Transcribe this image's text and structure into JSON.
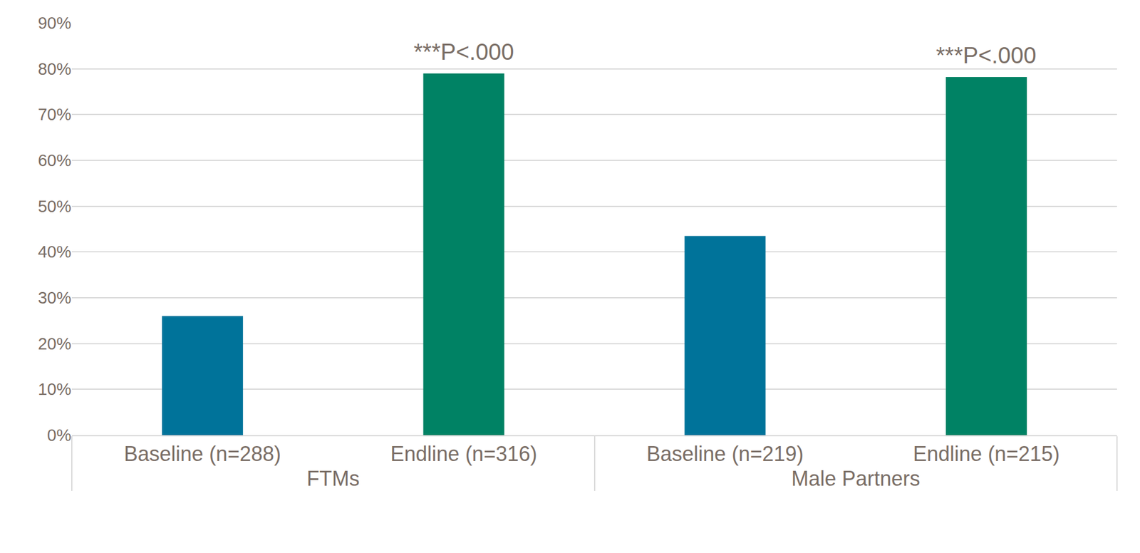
{
  "chart_data": {
    "type": "bar",
    "categories": [
      "Baseline (n=288)",
      "Endline (n=316)",
      "Baseline (n=219)",
      "Endline (n=215)"
    ],
    "groups": [
      "FTMs",
      "FTMs",
      "Male Partners",
      "Male Partners"
    ],
    "values": [
      26,
      79,
      43.5,
      78.2
    ],
    "colors": [
      "#00739a",
      "#008264",
      "#00739a",
      "#008264"
    ],
    "ylim": [
      0,
      90
    ],
    "yticks": [
      {
        "value": 0,
        "label": "0%"
      },
      {
        "value": 10,
        "label": "10%"
      },
      {
        "value": 20,
        "label": "20%"
      },
      {
        "value": 30,
        "label": "30%"
      },
      {
        "value": 40,
        "label": "40%"
      },
      {
        "value": 50,
        "label": "50%"
      },
      {
        "value": 60,
        "label": "60%"
      },
      {
        "value": 70,
        "label": "70%"
      },
      {
        "value": 80,
        "label": "80%"
      },
      {
        "value": 90,
        "label": "90%"
      }
    ],
    "grid": true,
    "annotations": [
      {
        "text": "***P<.000",
        "category": "Endline (n=316)",
        "group": "FTMs"
      },
      {
        "text": "***P<.000",
        "category": "Endline (n=215)",
        "group": "Male Partners"
      }
    ]
  }
}
